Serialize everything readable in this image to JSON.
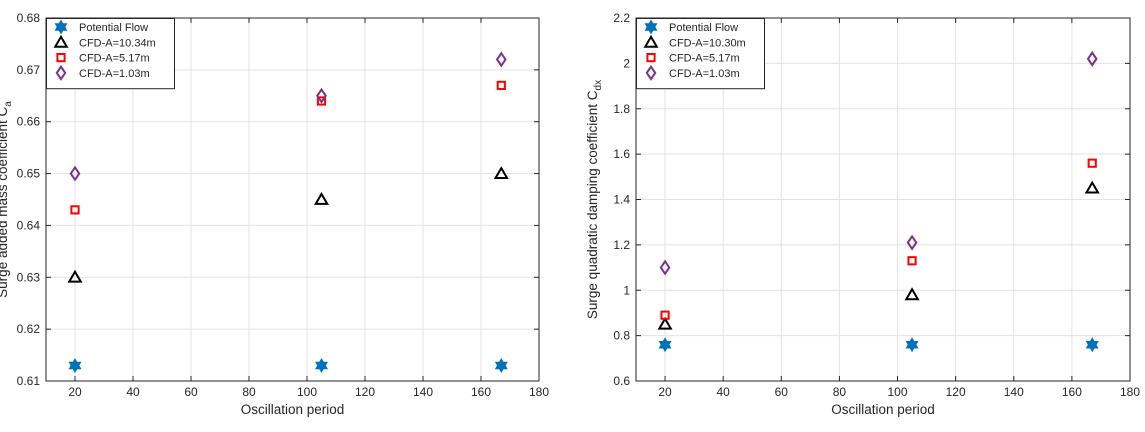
{
  "chart_data": [
    {
      "type": "scatter",
      "xlabel": "Oscillation period",
      "ylabel": "Surge added mass coefficient C",
      "ylabel_sub": "a",
      "xlim": [
        10,
        180
      ],
      "ylim": [
        0.61,
        0.68
      ],
      "xticks": [
        "20",
        "40",
        "60",
        "80",
        "100",
        "120",
        "140",
        "160",
        "180"
      ],
      "yticks": [
        "0.61",
        "0.62",
        "0.63",
        "0.64",
        "0.65",
        "0.66",
        "0.67",
        "0.68"
      ],
      "x": [
        20,
        105,
        167
      ],
      "grid": true,
      "legend_position": "top-left",
      "series": [
        {
          "name": "Potential Flow",
          "marker": "hexagram",
          "color": "#0072BD",
          "values": [
            0.613,
            0.613,
            0.613
          ]
        },
        {
          "name": "CFD-A=10.34m",
          "marker": "triangle",
          "color": "#000000",
          "values": [
            0.63,
            0.645,
            0.65
          ]
        },
        {
          "name": "CFD-A=5.17m",
          "marker": "square",
          "color": "#FF0000",
          "values": [
            0.643,
            0.664,
            0.667
          ]
        },
        {
          "name": "CFD-A=1.03m",
          "marker": "diamond",
          "color": "#7E2F8E",
          "values": [
            0.65,
            0.665,
            0.672
          ]
        }
      ]
    },
    {
      "type": "scatter",
      "xlabel": "Oscillation period",
      "ylabel": "Surge quadratic damping coefficient C",
      "ylabel_sub": "dx",
      "xlim": [
        10,
        180
      ],
      "ylim": [
        0.6,
        2.2
      ],
      "xticks": [
        "20",
        "40",
        "60",
        "80",
        "100",
        "120",
        "140",
        "160",
        "180"
      ],
      "yticks": [
        "0.6",
        "0.8",
        "1",
        "1.2",
        "1.4",
        "1.6",
        "1.8",
        "2",
        "2.2"
      ],
      "x": [
        20,
        105,
        167
      ],
      "grid": true,
      "legend_position": "top-left",
      "series": [
        {
          "name": "Potential Flow",
          "marker": "hexagram",
          "color": "#0072BD",
          "values": [
            0.76,
            0.76,
            0.76
          ]
        },
        {
          "name": "CFD-A=10.30m",
          "marker": "triangle",
          "color": "#000000",
          "values": [
            0.85,
            0.98,
            1.45
          ]
        },
        {
          "name": "CFD-A=5.17m",
          "marker": "square",
          "color": "#FF0000",
          "values": [
            0.89,
            1.13,
            1.56
          ]
        },
        {
          "name": "CFD-A=1.03m",
          "marker": "diamond",
          "color": "#7E2F8E",
          "values": [
            1.1,
            1.21,
            2.02
          ]
        }
      ]
    }
  ]
}
